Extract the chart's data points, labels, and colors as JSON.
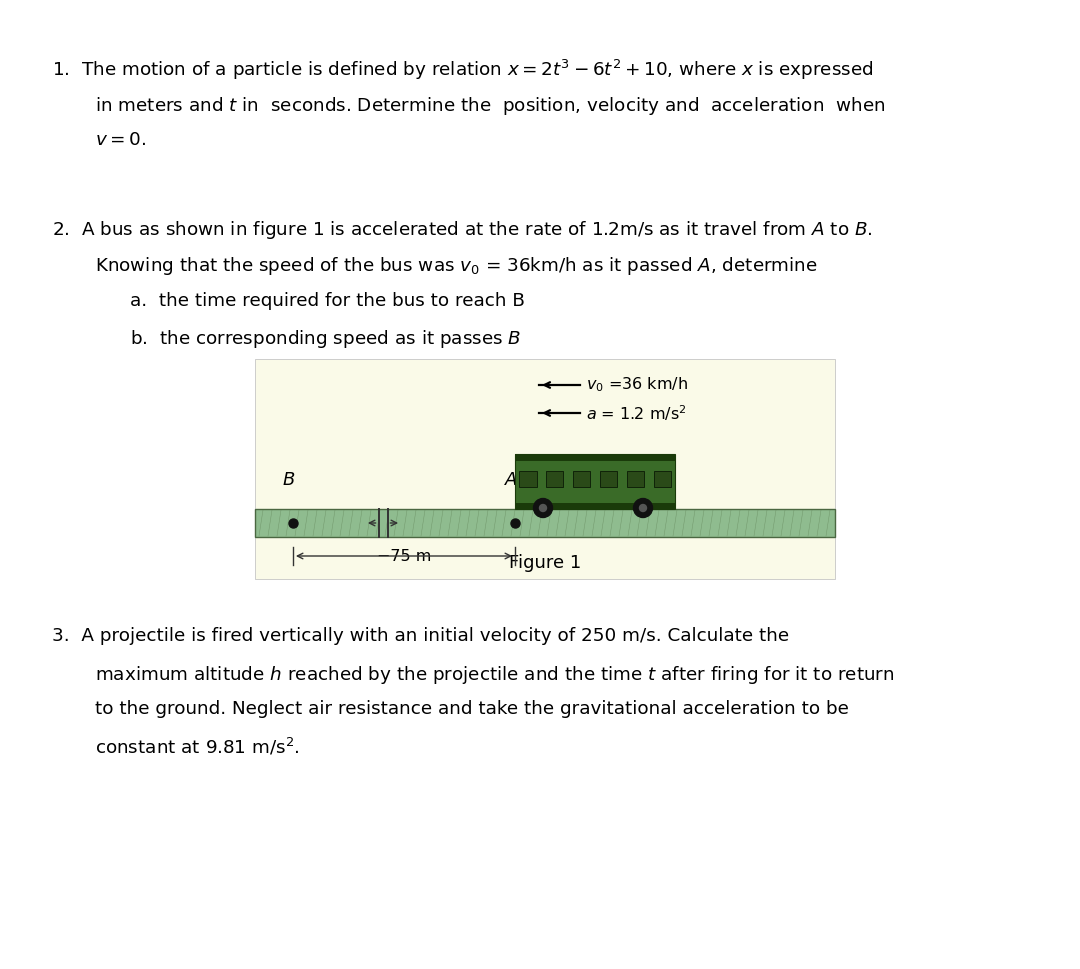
{
  "bg_color": "#FFFFFF",
  "text_color": "#000000",
  "road_color": "#8FBC8F",
  "road_border_color": "#4A6741",
  "road_stripe_color": "#5A7A50",
  "bus_body_color": "#3A6B28",
  "bus_dark_color": "#1A3A0A",
  "bus_window_color": "#2D5A1B",
  "bus_wheel_color": "#111111",
  "bus_wheel_highlight": "#555555",
  "figure_bg": "#FAFAE8",
  "q1_l1": "1.  The motion of a particle is defined by relation $x = 2t^3 - 6t^2 + 10$, where $x$ is expressed",
  "q1_l2": "    in meters and $t$ in  seconds. Determine the  position, velocity and  acceleration  when",
  "q1_l3": "    $v = 0$.",
  "q2_l1": "2.  A bus as shown in figure 1 is accelerated at the rate of 1.2m/s as it travel from $A$ to $B$.",
  "q2_l2": "    Knowing that the speed of the bus was $v_0$ = 36km/h as it passed $A$, determine",
  "q2_l3": "     a.  the time required for the bus to reach B",
  "q2_l4": "     b.  the corresponding speed as it passes $B$",
  "legend_v0": "$v_0$ =36 km/h",
  "legend_a": "$a$ = 1.2 m/s$^2$",
  "dim_label": "−75 m",
  "fig_label": "Figure 1",
  "label_B": "$B$",
  "label_A": "$A$",
  "q3_l1": "3.  A projectile is fired vertically with an initial velocity of 250 m/s. Calculate the",
  "q3_l2": "    maximum altitude $h$ reached by the projectile and the time $t$ after firing for it to return",
  "q3_l3": "    to the ground. Neglect air resistance and take the gravitational acceleration to be",
  "q3_l4": "    constant at 9.81 m/s$^2$."
}
